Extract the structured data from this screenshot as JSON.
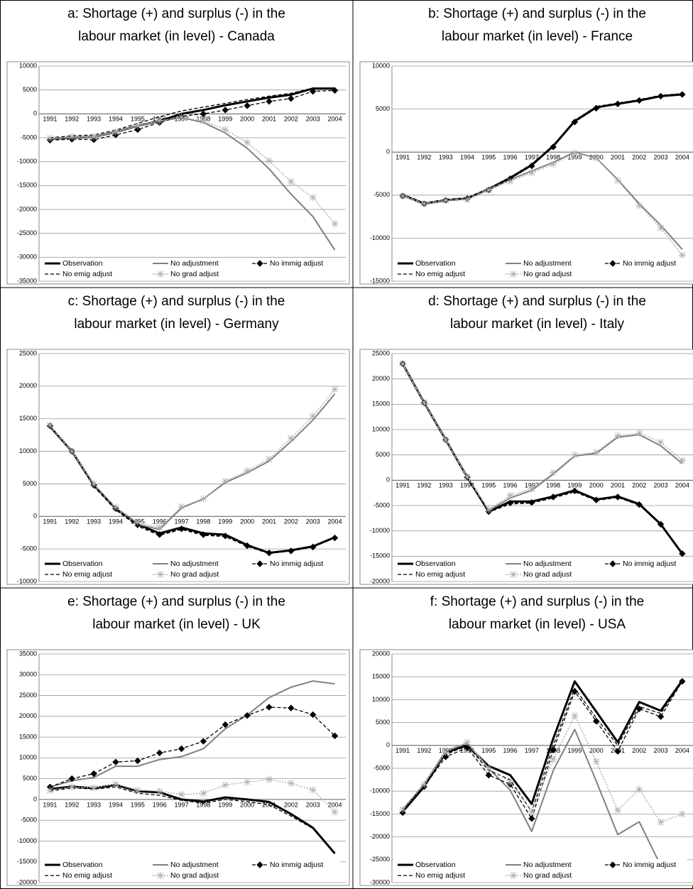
{
  "chart_data": [
    {
      "type": "line",
      "title": [
        "a: Shortage (+) and surplus (-) in the",
        "labour market (in level) - Canada"
      ],
      "categories": [
        "1991",
        "1992",
        "1993",
        "1994",
        "1995",
        "1996",
        "1997",
        "1998",
        "1999",
        "2000",
        "2001",
        "2002",
        "2003",
        "2004"
      ],
      "ylim": [
        -35000,
        10000
      ],
      "yticks": [
        -35000,
        -30000,
        -25000,
        -20000,
        -15000,
        -10000,
        -5000,
        0,
        5000,
        10000
      ],
      "grid": true,
      "legend": "bottom",
      "series": [
        {
          "name": "Observation",
          "color": "#000000",
          "width": 3,
          "dash": "solid",
          "marker": "none",
          "values": [
            -5200,
            -5000,
            -4800,
            -3800,
            -2500,
            -1500,
            0,
            800,
            1800,
            2600,
            3400,
            4000,
            5300,
            5300
          ]
        },
        {
          "name": "No adjustment",
          "color": "#808080",
          "width": 2,
          "dash": "solid",
          "marker": "none",
          "values": [
            -5200,
            -5000,
            -4800,
            -3800,
            -2500,
            -1500,
            -800,
            -1800,
            -4000,
            -7200,
            -11500,
            -16800,
            -21500,
            -28500
          ]
        },
        {
          "name": "No immig adjust",
          "color": "#000000",
          "width": 1.3,
          "dash": "dashed",
          "marker": "diamond",
          "values": [
            -5500,
            -5300,
            -5400,
            -4400,
            -3300,
            -1800,
            -500,
            0,
            800,
            1700,
            2600,
            3200,
            4700,
            4900
          ]
        },
        {
          "name": "No emig adjust",
          "color": "#000000",
          "width": 1.3,
          "dash": "dashed",
          "marker": "none",
          "values": [
            -5000,
            -4600,
            -4400,
            -3400,
            -2000,
            -600,
            600,
            1400,
            2200,
            3000,
            3700,
            4300,
            5400,
            5300
          ]
        },
        {
          "name": "No grad adjust",
          "color": "#b0b0b0",
          "width": 1.5,
          "dash": "dotted",
          "marker": "star",
          "values": [
            -5100,
            -4800,
            -4800,
            -3800,
            -2500,
            -1500,
            -700,
            -1500,
            -3300,
            -6000,
            -9800,
            -14200,
            -17500,
            -23000
          ]
        }
      ]
    },
    {
      "type": "line",
      "title": [
        "b: Shortage (+) and surplus (-) in the",
        "labour market (in level) - France"
      ],
      "categories": [
        "1991",
        "1992",
        "1993",
        "1994",
        "1995",
        "1996",
        "1997",
        "1998",
        "1999",
        "2000",
        "2001",
        "2002",
        "2003",
        "2004"
      ],
      "ylim": [
        -15000,
        10000
      ],
      "yticks": [
        -15000,
        -10000,
        -5000,
        0,
        5000,
        10000
      ],
      "grid": true,
      "legend": "bottom",
      "series": [
        {
          "name": "Observation",
          "color": "#000000",
          "width": 3,
          "dash": "solid",
          "marker": "none",
          "values": [
            -5000,
            -6000,
            -5600,
            -5400,
            -4300,
            -3000,
            -1500,
            700,
            3600,
            5200,
            5600,
            6000,
            6500,
            6700
          ]
        },
        {
          "name": "No adjustment",
          "color": "#808080",
          "width": 2,
          "dash": "solid",
          "marker": "none",
          "values": [
            -5000,
            -6000,
            -5600,
            -5400,
            -4300,
            -3200,
            -2200,
            -1200,
            0,
            -700,
            -3200,
            -6000,
            -8500,
            -11300
          ]
        },
        {
          "name": "No immig adjust",
          "color": "#000000",
          "width": 1.3,
          "dash": "dashed",
          "marker": "diamond",
          "values": [
            -5100,
            -6000,
            -5600,
            -5400,
            -4400,
            -3100,
            -1600,
            600,
            3500,
            5100,
            5600,
            6000,
            6500,
            6700
          ]
        },
        {
          "name": "No emig adjust",
          "color": "#000000",
          "width": 1.3,
          "dash": "dashed",
          "marker": "none",
          "values": [
            -4900,
            -5900,
            -5500,
            -5300,
            -4200,
            -2900,
            -1400,
            800,
            3700,
            5300,
            5700,
            6100,
            6600,
            6800
          ]
        },
        {
          "name": "No grad adjust",
          "color": "#b0b0b0",
          "width": 1.5,
          "dash": "dotted",
          "marker": "star",
          "values": [
            -5100,
            -6000,
            -5600,
            -5500,
            -4400,
            -3400,
            -2400,
            -1400,
            -100,
            -700,
            -3300,
            -6200,
            -8800,
            -12000
          ]
        }
      ]
    },
    {
      "type": "line",
      "title": [
        "c: Shortage (+) and surplus (-) in the",
        "labour market (in level) - Germany"
      ],
      "categories": [
        "1991",
        "1992",
        "1993",
        "1994",
        "1995",
        "1996",
        "1997",
        "1998",
        "1999",
        "2000",
        "2001",
        "2002",
        "2003",
        "2004"
      ],
      "ylim": [
        -10000,
        25000
      ],
      "yticks": [
        -10000,
        -5000,
        0,
        5000,
        10000,
        15000,
        20000,
        25000
      ],
      "grid": true,
      "legend": "bottom",
      "series": [
        {
          "name": "Observation",
          "color": "#000000",
          "width": 3,
          "dash": "solid",
          "marker": "none",
          "values": [
            13800,
            10000,
            4800,
            1200,
            -1200,
            -2600,
            -1700,
            -2600,
            -2800,
            -4400,
            -5600,
            -5200,
            -4600,
            -3200
          ]
        },
        {
          "name": "No adjustment",
          "color": "#808080",
          "width": 2,
          "dash": "solid",
          "marker": "none",
          "values": [
            13800,
            10000,
            4800,
            1200,
            -1200,
            -2000,
            1300,
            2700,
            5200,
            6700,
            8500,
            11500,
            14800,
            18800
          ]
        },
        {
          "name": "No immig adjust",
          "color": "#000000",
          "width": 1.3,
          "dash": "dashed",
          "marker": "diamond",
          "values": [
            13900,
            10000,
            4800,
            1200,
            -1300,
            -2800,
            -1900,
            -2800,
            -3000,
            -4500,
            -5600,
            -5300,
            -4700,
            -3300
          ]
        },
        {
          "name": "No emig adjust",
          "color": "#000000",
          "width": 1.3,
          "dash": "dashed",
          "marker": "none",
          "values": [
            13800,
            9900,
            4600,
            1000,
            -1500,
            -2900,
            -2000,
            -2900,
            -3100,
            -4600,
            -5700,
            -5300,
            -4700,
            -3300
          ]
        },
        {
          "name": "No grad adjust",
          "color": "#b0b0b0",
          "width": 1.5,
          "dash": "dotted",
          "marker": "star",
          "values": [
            14000,
            10000,
            5000,
            1400,
            -900,
            -1700,
            1500,
            2700,
            5400,
            7000,
            8800,
            12000,
            15400,
            19500
          ]
        }
      ]
    },
    {
      "type": "line",
      "title": [
        "d: Shortage (+) and surplus (-) in the",
        "labour market (in level) - Italy"
      ],
      "categories": [
        "1991",
        "1992",
        "1993",
        "1994",
        "1995",
        "1996",
        "1997",
        "1998",
        "1999",
        "2000",
        "2001",
        "2002",
        "2003",
        "2004"
      ],
      "ylim": [
        -20000,
        25000
      ],
      "yticks": [
        -20000,
        -15000,
        -10000,
        -5000,
        0,
        5000,
        10000,
        15000,
        20000,
        25000
      ],
      "grid": true,
      "legend": "bottom",
      "series": [
        {
          "name": "Observation",
          "color": "#000000",
          "width": 3,
          "dash": "solid",
          "marker": "none",
          "values": [
            23000,
            15300,
            8000,
            600,
            -6200,
            -4200,
            -4200,
            -3200,
            -2000,
            -3800,
            -3200,
            -4700,
            -8700,
            -14500
          ]
        },
        {
          "name": "No adjustment",
          "color": "#808080",
          "width": 2,
          "dash": "solid",
          "marker": "none",
          "values": [
            23000,
            15300,
            8000,
            600,
            -6000,
            -3500,
            -2000,
            1200,
            4800,
            5300,
            8500,
            9000,
            6800,
            3300
          ]
        },
        {
          "name": "No immig adjust",
          "color": "#000000",
          "width": 1.3,
          "dash": "dashed",
          "marker": "diamond",
          "values": [
            23000,
            15300,
            8000,
            600,
            -6200,
            -4500,
            -4400,
            -3300,
            -2100,
            -3900,
            -3300,
            -4800,
            -8700,
            -14500
          ]
        },
        {
          "name": "No emig adjust",
          "color": "#000000",
          "width": 1.3,
          "dash": "dashed",
          "marker": "none",
          "values": [
            23000,
            15300,
            7900,
            500,
            -6300,
            -4700,
            -4500,
            -3500,
            -2300,
            -4000,
            -3400,
            -4900,
            -8800,
            -14500
          ]
        },
        {
          "name": "No grad adjust",
          "color": "#b0b0b0",
          "width": 1.5,
          "dash": "dotted",
          "marker": "star",
          "values": [
            23000,
            15300,
            8000,
            700,
            -5800,
            -3000,
            -1700,
            1500,
            5000,
            5500,
            8800,
            9300,
            7500,
            3900
          ]
        }
      ]
    },
    {
      "type": "line",
      "title": [
        "e: Shortage (+) and surplus (-) in the",
        "labour market (in level) - UK"
      ],
      "categories": [
        "1991",
        "1992",
        "1993",
        "1994",
        "1995",
        "1996",
        "1997",
        "1998",
        "1999",
        "2000",
        "2001",
        "2002",
        "2003",
        "2004"
      ],
      "ylim": [
        -20000,
        35000
      ],
      "yticks": [
        -20000,
        -15000,
        -10000,
        -5000,
        0,
        5000,
        10000,
        15000,
        20000,
        25000,
        30000,
        35000
      ],
      "grid": true,
      "legend": "bottom",
      "series": [
        {
          "name": "Observation",
          "color": "#000000",
          "width": 3,
          "dash": "solid",
          "marker": "none",
          "values": [
            2500,
            3100,
            2700,
            3500,
            2000,
            1700,
            0,
            -500,
            500,
            0,
            -600,
            -3500,
            -6800,
            -13000
          ]
        },
        {
          "name": "No adjustment",
          "color": "#808080",
          "width": 2,
          "dash": "solid",
          "marker": "none",
          "values": [
            3000,
            4500,
            5300,
            8000,
            8000,
            9600,
            10300,
            12200,
            17000,
            20300,
            24500,
            27000,
            28500,
            27800
          ]
        },
        {
          "name": "No immig adjust",
          "color": "#000000",
          "width": 1.3,
          "dash": "dashed",
          "marker": "diamond",
          "values": [
            3000,
            5000,
            6200,
            9000,
            9300,
            11200,
            12200,
            14000,
            18000,
            20200,
            22200,
            22000,
            20400,
            15300
          ]
        },
        {
          "name": "No emig adjust",
          "color": "#000000",
          "width": 1.3,
          "dash": "dashed",
          "marker": "none",
          "values": [
            2000,
            2800,
            2500,
            3000,
            1500,
            1000,
            -200,
            -900,
            0,
            -500,
            -1300,
            -4000,
            -7000,
            -13000
          ]
        },
        {
          "name": "No grad adjust",
          "color": "#b0b0b0",
          "width": 1.5,
          "dash": "dotted",
          "marker": "star",
          "values": [
            2200,
            3000,
            2800,
            3700,
            2200,
            2000,
            1200,
            1500,
            3500,
            4200,
            4800,
            3900,
            2300,
            -3000
          ]
        }
      ]
    },
    {
      "type": "line",
      "title": [
        "f: Shortage (+) and surplus (-) in the",
        "labour market (in level) - USA"
      ],
      "categories": [
        "1991",
        "1992",
        "1993",
        "1994",
        "1995",
        "1996",
        "1997",
        "1998",
        "1999",
        "2000",
        "2001",
        "2002",
        "2003",
        "2004"
      ],
      "ylim": [
        -30000,
        20000
      ],
      "yticks": [
        -30000,
        -25000,
        -20000,
        -15000,
        -10000,
        -5000,
        0,
        5000,
        10000,
        15000,
        20000
      ],
      "grid": true,
      "legend": "bottom",
      "series": [
        {
          "name": "Observation",
          "color": "#000000",
          "width": 3,
          "dash": "solid",
          "marker": "none",
          "values": [
            -14500,
            -9000,
            -1500,
            0,
            -4500,
            -6500,
            -12800,
            1500,
            14000,
            7400,
            700,
            9500,
            7600,
            14200
          ]
        },
        {
          "name": "No adjustment",
          "color": "#808080",
          "width": 2,
          "dash": "solid",
          "marker": "none",
          "values": [
            -14000,
            -8500,
            -1200,
            500,
            -5000,
            -9800,
            -18800,
            -5500,
            3500,
            -7800,
            -19500,
            -16700,
            -26300,
            -27400
          ]
        },
        {
          "name": "No immig adjust",
          "color": "#000000",
          "width": 1.3,
          "dash": "dashed",
          "marker": "diamond",
          "values": [
            -14700,
            -9000,
            -2500,
            -500,
            -6500,
            -8500,
            -16000,
            -1000,
            11800,
            5300,
            -1300,
            8000,
            6300,
            14000
          ]
        },
        {
          "name": "No emig adjust",
          "color": "#000000",
          "width": 1.3,
          "dash": "dashed",
          "marker": "none",
          "values": [
            -14200,
            -8500,
            -2000,
            0,
            -5500,
            -7500,
            -14500,
            0,
            12500,
            6000,
            0,
            8500,
            7000,
            14000
          ]
        },
        {
          "name": "No grad adjust",
          "color": "#b0b0b0",
          "width": 1.5,
          "dash": "dotted",
          "marker": "star",
          "values": [
            -14000,
            -8500,
            -1500,
            700,
            -5000,
            -8000,
            -14500,
            -3000,
            6500,
            -3500,
            -14200,
            -9600,
            -16800,
            -15000
          ]
        }
      ]
    }
  ]
}
